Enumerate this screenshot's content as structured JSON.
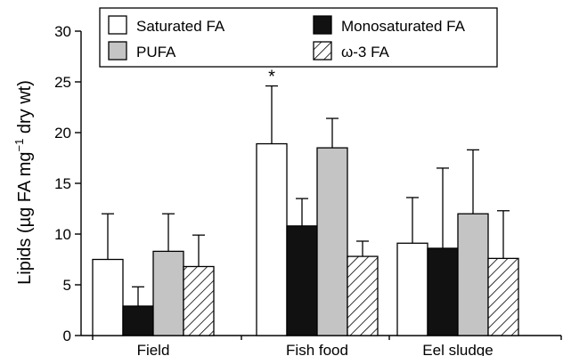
{
  "chart_data": {
    "type": "bar",
    "title": "",
    "xlabel": "",
    "ylabel": "Lipids (µg FA mg",
    "ylabel_sup": "−1",
    "ylabel_end": " dry wt)",
    "ylim": [
      0,
      30
    ],
    "yticks": [
      0,
      5,
      10,
      15,
      20,
      25,
      30
    ],
    "grid": false,
    "legend_position": "top",
    "categories": [
      "Field",
      "Fish food",
      "Eel sludge"
    ],
    "series": [
      {
        "name": "Saturated FA",
        "fill": "white",
        "values": [
          7.5,
          18.9,
          9.1
        ],
        "errors": [
          4.5,
          5.7,
          4.5
        ]
      },
      {
        "name": "Monosaturated FA",
        "fill": "black",
        "values": [
          2.9,
          10.8,
          8.6
        ],
        "errors": [
          1.9,
          2.7,
          7.9
        ]
      },
      {
        "name": "PUFA",
        "fill": "gray",
        "values": [
          8.3,
          18.5,
          12.0
        ],
        "errors": [
          3.7,
          2.9,
          6.3
        ]
      },
      {
        "name": "ω-3 FA",
        "fill": "hatch",
        "values": [
          6.8,
          7.8,
          7.6
        ],
        "errors": [
          3.1,
          1.5,
          4.7
        ]
      }
    ],
    "annotations": [
      {
        "text": "*",
        "category": "Fish food",
        "series": "Saturated FA"
      }
    ]
  },
  "colors": {
    "white_fill": "#ffffff",
    "black_fill": "#111111",
    "gray_fill": "#c4c4c4",
    "stroke": "#000000"
  }
}
